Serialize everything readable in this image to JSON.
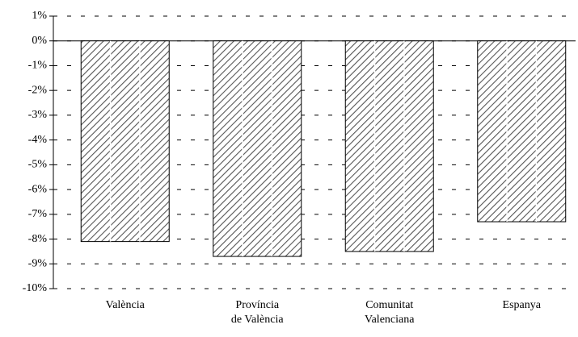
{
  "chart_data": {
    "type": "bar",
    "categories": [
      "València",
      "Província\nde València",
      "Comunitat\nValenciana",
      "Espanya"
    ],
    "values": [
      -8.1,
      -8.7,
      -8.5,
      -7.3
    ],
    "color": "#555555",
    "ylim": [
      -10,
      1
    ],
    "yticks": [
      {
        "value": 1,
        "label": "1%"
      },
      {
        "value": 0,
        "label": "0%"
      },
      {
        "value": -1,
        "label": "-1%"
      },
      {
        "value": -2,
        "label": "-2%"
      },
      {
        "value": -3,
        "label": "-3%"
      },
      {
        "value": -4,
        "label": "-4%"
      },
      {
        "value": -5,
        "label": "-5%"
      },
      {
        "value": -6,
        "label": "-6%"
      },
      {
        "value": -7,
        "label": "-7%"
      },
      {
        "value": -8,
        "label": "-8%"
      },
      {
        "value": -9,
        "label": "-9%"
      },
      {
        "value": -10,
        "label": "-10%"
      }
    ],
    "grid": true
  }
}
